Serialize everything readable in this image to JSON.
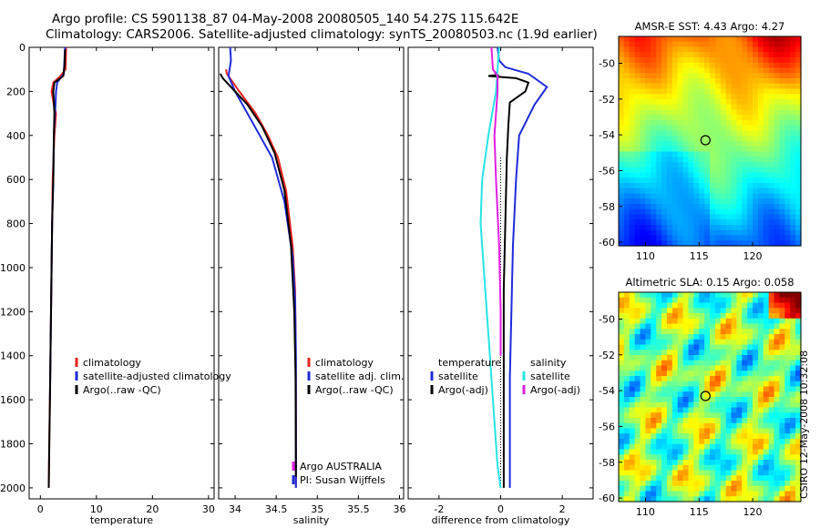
{
  "header": {
    "title_line1": "Argo profile: CS 5901138_87 04-May-2008 20080505_140 54.27S 115.642E",
    "title_line2": "Climatology: CARS2006. Satellite-adjusted climatology: synTS_20080503.nc (1.9d earlier)"
  },
  "footer_vertical": "CSIRO 12-May-2008 10:32:08",
  "colors": {
    "red": "#e8231e",
    "blue": "#1f2bd8",
    "black": "#000000",
    "cyan": "#26e4e4",
    "magenta": "#e020e0"
  },
  "chart_data": [
    {
      "type": "line",
      "panel": "temperature",
      "xlabel": "temperature",
      "ylabel": "",
      "xlim": [
        -2,
        31
      ],
      "ylim": [
        2050,
        0
      ],
      "xticks": [
        0,
        10,
        20,
        30
      ],
      "yticks": [
        0,
        200,
        400,
        600,
        800,
        1000,
        1200,
        1400,
        1600,
        1800,
        2000
      ],
      "legend_position": "lower-middle",
      "series": [
        {
          "name": "climatology",
          "color": "red",
          "x": [
            4.6,
            4.5,
            3.6,
            2.3,
            2.0,
            2.4,
            2.8,
            2.5,
            2.2,
            2.1,
            2.0,
            1.9,
            1.8,
            1.7,
            1.6,
            1.5
          ],
          "y": [
            0,
            100,
            130,
            160,
            200,
            260,
            300,
            400,
            600,
            800,
            1000,
            1200,
            1400,
            1600,
            1800,
            2000
          ]
        },
        {
          "name": "satellite-adjusted climatology",
          "color": "blue",
          "x": [
            4.4,
            4.3,
            4.2,
            3.0,
            2.8,
            2.7,
            2.6,
            2.4,
            2.3,
            2.1,
            2.0,
            1.9,
            1.8,
            1.7
          ],
          "y": [
            0,
            50,
            120,
            160,
            200,
            260,
            300,
            400,
            600,
            800,
            1000,
            1200,
            1400,
            1600
          ]
        },
        {
          "name": "Argo(..raw -QC)",
          "color": "black",
          "x": [
            4.4,
            4.3,
            4.1,
            2.5,
            2.3,
            2.4,
            2.5,
            2.4,
            2.3,
            2.1,
            2.0,
            1.9,
            1.8,
            1.7,
            1.6,
            1.5
          ],
          "y": [
            10,
            80,
            130,
            160,
            200,
            250,
            300,
            400,
            600,
            800,
            1000,
            1200,
            1400,
            1600,
            1800,
            2000
          ]
        }
      ],
      "legend": [
        "climatology",
        "satellite-adjusted climatology",
        "Argo(..raw -QC)"
      ]
    },
    {
      "type": "line",
      "panel": "salinity",
      "xlabel": "salinity",
      "xlim": [
        33.8,
        36.05
      ],
      "ylim": [
        2050,
        0
      ],
      "xticks": [
        34,
        34.5,
        35,
        35.5,
        36
      ],
      "series": [
        {
          "name": "climatology",
          "color": "red",
          "x": [
            33.89,
            33.9,
            34.05,
            34.25,
            34.4,
            34.52,
            34.62,
            34.7,
            34.73,
            34.735,
            34.74,
            34.74
          ],
          "y": [
            100,
            120,
            200,
            300,
            400,
            500,
            650,
            900,
            1100,
            1300,
            1600,
            2000
          ]
        },
        {
          "name": "satellite adj. clim.",
          "color": "blue",
          "x": [
            33.94,
            33.95,
            33.92,
            34.0,
            34.15,
            34.3,
            34.45,
            34.6,
            34.7,
            34.73,
            34.74,
            34.74,
            34.74
          ],
          "y": [
            0,
            60,
            130,
            200,
            300,
            400,
            500,
            700,
            950,
            1150,
            1400,
            1700,
            2000
          ]
        },
        {
          "name": "Argo(..raw -QC)",
          "color": "black",
          "x": [
            33.82,
            33.85,
            33.95,
            34.15,
            34.33,
            34.48,
            34.6,
            34.68,
            34.72,
            34.735,
            34.74
          ],
          "y": [
            120,
            140,
            180,
            260,
            360,
            480,
            650,
            900,
            1200,
            1500,
            1950
          ]
        }
      ],
      "legend": [
        "climatology",
        "satellite adj. clim.",
        "Argo(..raw -QC)"
      ],
      "annotations": [
        "Argo AUSTRALIA",
        "PI: Susan Wijffels"
      ]
    },
    {
      "type": "line",
      "panel": "difference",
      "xlabel": "difference from climatology",
      "xlim": [
        -3,
        3
      ],
      "ylim": [
        2050,
        0
      ],
      "xticks": [
        -2,
        0,
        2
      ],
      "series": [
        {
          "name": "temperature satellite",
          "color": "blue",
          "x": [
            -0.1,
            -0.05,
            0.15,
            0.9,
            1.5,
            1.1,
            0.6,
            0.5,
            0.4,
            0.35,
            0.3,
            0.3,
            0.3
          ],
          "y": [
            0,
            60,
            90,
            120,
            180,
            260,
            400,
            600,
            900,
            1200,
            1500,
            1800,
            2000
          ]
        },
        {
          "name": "temperature Argo(-adj)",
          "color": "black",
          "x": [
            -0.2,
            -0.1,
            -0.4,
            0.5,
            0.9,
            0.8,
            0.3,
            0.25,
            0.2,
            0.15,
            0.1,
            0.1,
            0.1
          ],
          "y": [
            110,
            125,
            130,
            140,
            160,
            200,
            250,
            350,
            500,
            800,
            1100,
            1500,
            2000
          ]
        },
        {
          "name": "salinity satellite",
          "color": "cyan",
          "x": [
            -0.05,
            -0.1,
            -0.15,
            -0.4,
            -0.6,
            -0.65,
            -0.55,
            -0.4,
            -0.25,
            -0.1,
            0.0
          ],
          "y": [
            0,
            100,
            200,
            400,
            600,
            800,
            1000,
            1300,
            1600,
            1900,
            2000
          ]
        },
        {
          "name": "salinity Argo(-adj)",
          "color": "magenta",
          "x": [
            -0.3,
            -0.25,
            -0.1,
            -0.1,
            -0.2,
            -0.15,
            -0.05,
            0.0,
            0.0
          ],
          "y": [
            0,
            100,
            130,
            200,
            400,
            600,
            900,
            1200,
            1400
          ]
        }
      ],
      "legend_titles": [
        "temperature",
        "salinity"
      ],
      "legend": [
        "satellite",
        "Argo(-adj)",
        "satellite",
        "Argo(-adj)"
      ]
    },
    {
      "type": "heatmap",
      "panel": "sst_map",
      "title": "AMSR-E SST: 4.43  Argo: 4.27",
      "xlim": [
        107.5,
        124.5
      ],
      "ylim": [
        -60.2,
        -48.5
      ],
      "xticks": [
        110,
        115,
        120
      ],
      "yticks": [
        -50,
        -52,
        -54,
        -56,
        -58,
        -60
      ],
      "marker": [
        115.6,
        -54.3
      ]
    },
    {
      "type": "heatmap",
      "panel": "sla_map",
      "title": "Altimetric SLA: 0.15  Argo: 0.058",
      "xlim": [
        107.5,
        124.5
      ],
      "ylim": [
        -60.2,
        -48.5
      ],
      "xticks": [
        110,
        115,
        120
      ],
      "yticks": [
        -50,
        -52,
        -54,
        -56,
        -58,
        -60
      ],
      "marker": [
        115.6,
        -54.3
      ]
    }
  ]
}
